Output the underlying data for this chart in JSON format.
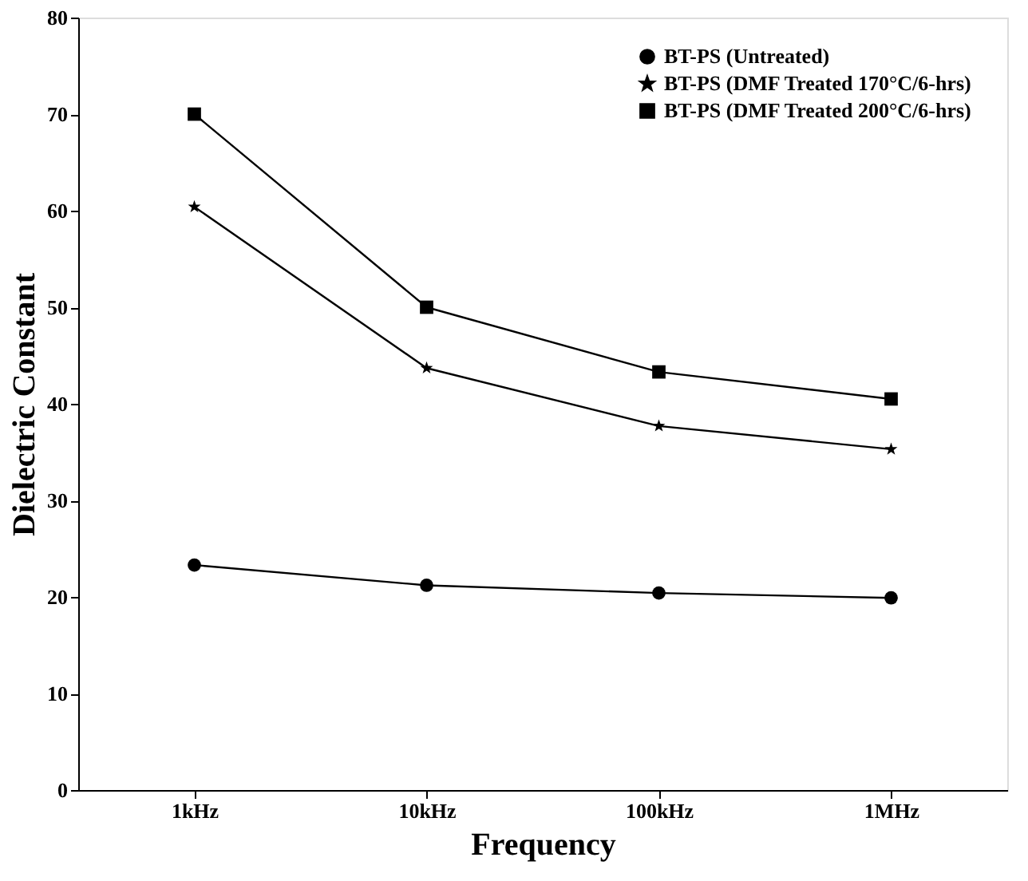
{
  "chart_data": {
    "type": "line",
    "xlabel": "Frequency",
    "ylabel": "Dielectric Constant",
    "categories": [
      "1kHz",
      "10kHz",
      "100kHz",
      "1MHz"
    ],
    "series": [
      {
        "name": "BT-PS  (Untreated)",
        "color": "#000000",
        "marker": "circle",
        "values": [
          23.3,
          21.2,
          20.4,
          19.9
        ]
      },
      {
        "name": "BT-PS  (DMF Treated 170°C/6-hrs)",
        "color": "#000000",
        "marker": "star",
        "values": [
          60.4,
          43.7,
          37.7,
          35.3
        ]
      },
      {
        "name": "BT-PS  (DMF Treated 200°C/6-hrs)",
        "color": "#000000",
        "marker": "square",
        "values": [
          70.0,
          50.0,
          43.3,
          40.5
        ]
      }
    ],
    "ylim": [
      0,
      80
    ],
    "yticks": [
      0,
      10,
      20,
      30,
      40,
      50,
      60,
      70,
      80
    ],
    "grid": false,
    "legend": "top right",
    "line_style": "solid"
  }
}
